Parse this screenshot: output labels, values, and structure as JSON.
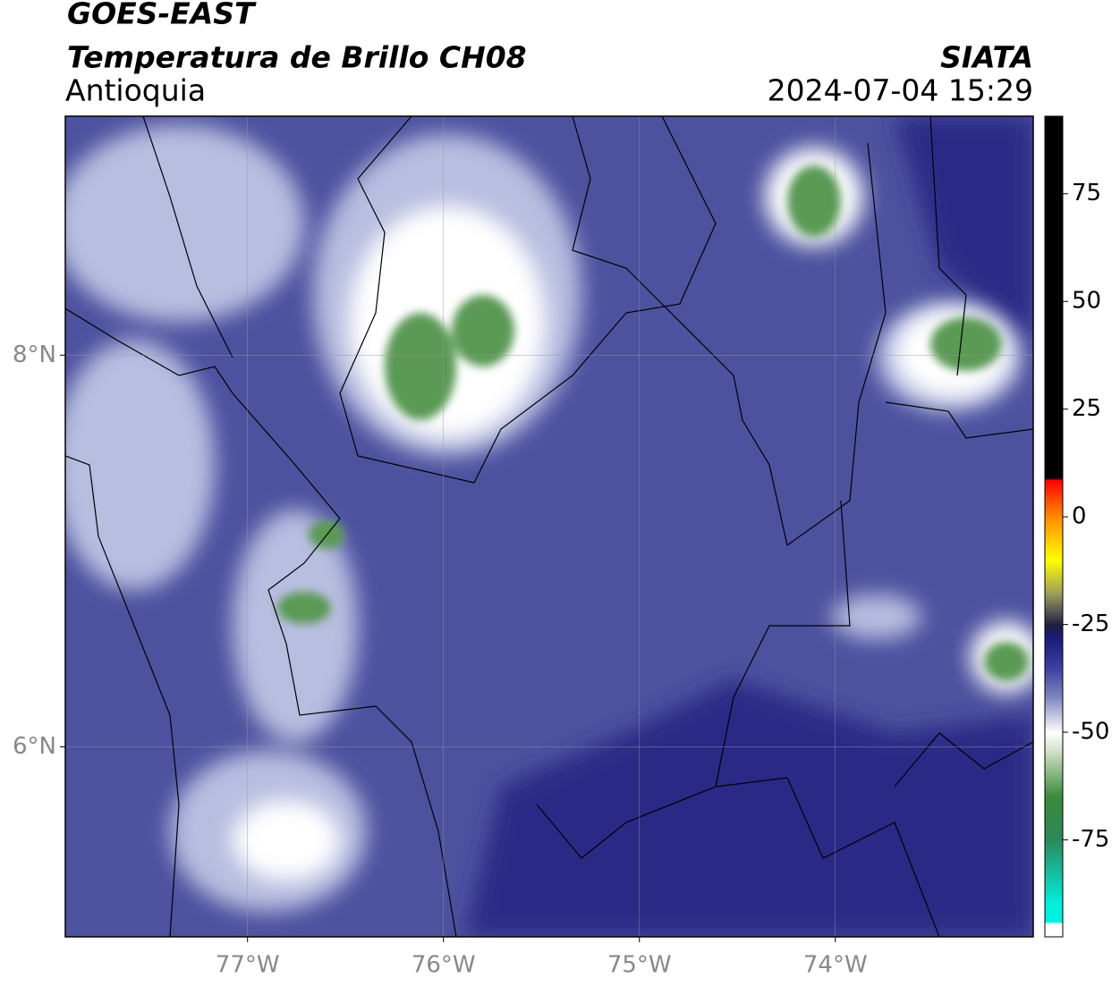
{
  "header": {
    "satellite": "GOES-EAST",
    "product": "Temperatura de Brillo CH08",
    "region": "Antioquia",
    "source": "SIATA",
    "timestamp": "2024-07-04 15:29"
  },
  "map": {
    "xlim": [
      -77.93,
      -72.99
    ],
    "ylim": [
      5.03,
      9.22
    ],
    "xticks": [
      {
        "value": -77,
        "label": "77°W"
      },
      {
        "value": -76,
        "label": "76°W"
      },
      {
        "value": -75,
        "label": "75°W"
      },
      {
        "value": -74,
        "label": "74°W"
      }
    ],
    "yticks": [
      {
        "value": 6,
        "label": "6°N"
      },
      {
        "value": 8,
        "label": "8°N"
      }
    ],
    "grid": true
  },
  "colorbar": {
    "lim": [
      -97.5,
      93
    ],
    "ticks": [
      75,
      50,
      25,
      0,
      -25,
      -50,
      -75
    ],
    "colors": [
      {
        "value": 93,
        "color": "#000000"
      },
      {
        "value": 9,
        "color": "#000000"
      },
      {
        "value": 8.5,
        "color": "#ff0000"
      },
      {
        "value": 0,
        "color": "#ff8c00"
      },
      {
        "value": -10,
        "color": "#ffff00"
      },
      {
        "value": -18,
        "color": "#9a9a60"
      },
      {
        "value": -25,
        "color": "#202040"
      },
      {
        "value": -28,
        "color": "#1a1a7a"
      },
      {
        "value": -35,
        "color": "#3a3fa0"
      },
      {
        "value": -42,
        "color": "#8088c0"
      },
      {
        "value": -50,
        "color": "#ffffff"
      },
      {
        "value": -55,
        "color": "#c8dcc0"
      },
      {
        "value": -65,
        "color": "#3a8a3a"
      },
      {
        "value": -75,
        "color": "#2a8a5a"
      },
      {
        "value": -90,
        "color": "#00f0e0"
      },
      {
        "value": -94,
        "color": "#00f0e0"
      },
      {
        "value": -94.5,
        "color": "#ffffff"
      },
      {
        "value": -97.5,
        "color": "#ffffff"
      }
    ]
  }
}
